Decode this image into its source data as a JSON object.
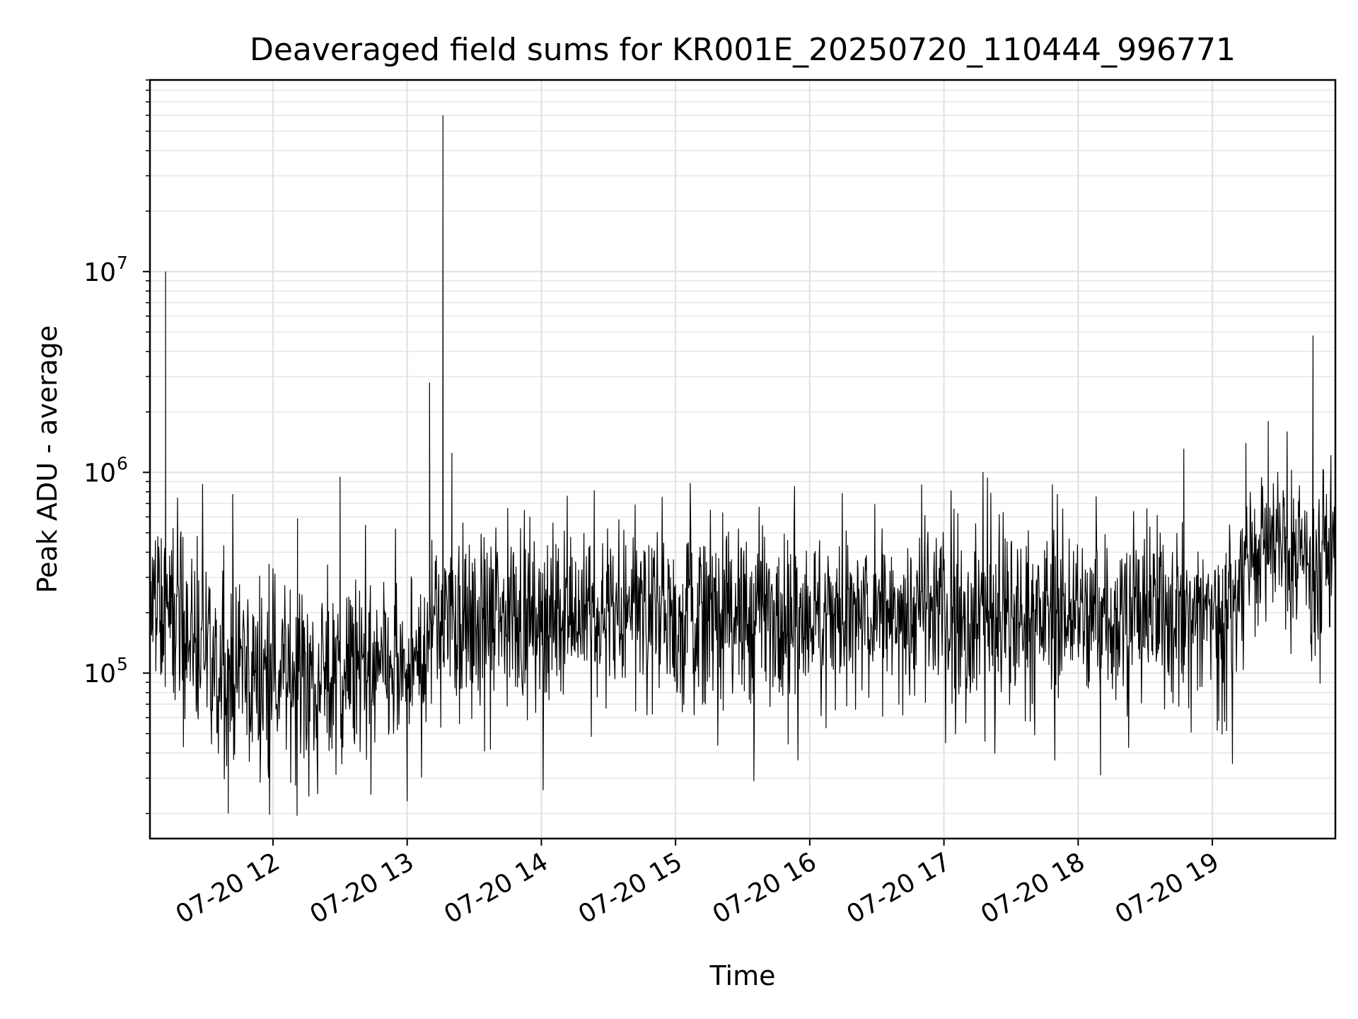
{
  "chart_data": {
    "type": "line",
    "title": "Deaveraged field sums for KR001E_20250720_110444_996771",
    "xlabel": "Time",
    "ylabel": "Peak ADU - average",
    "x_axis": {
      "kind": "datetime",
      "range": [
        "2025-07-20 11:05",
        "2025-07-20 19:55"
      ],
      "ticks": [
        {
          "time": "2025-07-20 12:00",
          "label": "07-20 12"
        },
        {
          "time": "2025-07-20 13:00",
          "label": "07-20 13"
        },
        {
          "time": "2025-07-20 14:00",
          "label": "07-20 14"
        },
        {
          "time": "2025-07-20 15:00",
          "label": "07-20 15"
        },
        {
          "time": "2025-07-20 16:00",
          "label": "07-20 16"
        },
        {
          "time": "2025-07-20 17:00",
          "label": "07-20 17"
        },
        {
          "time": "2025-07-20 18:00",
          "label": "07-20 18"
        },
        {
          "time": "2025-07-20 19:00",
          "label": "07-20 19"
        }
      ]
    },
    "y_axis": {
      "scale": "log",
      "range": [
        15000,
        90000000
      ],
      "ticks": [
        {
          "value": 100000,
          "base": "10",
          "exp": "5"
        },
        {
          "value": 1000000,
          "base": "10",
          "exp": "6"
        },
        {
          "value": 10000000,
          "base": "10",
          "exp": "7"
        }
      ]
    },
    "grid": true,
    "series": [
      {
        "color": "#000000",
        "description_of_trend": "noisy series; level ~2e5 (11:05-11:20), ~1e5 (11:30-13:05), ~2e5 (13:10-19:10), ~4e5 (19:15-19:55)",
        "points": [
          {
            "x": "2025-07-20 11:05",
            "y": 200000
          },
          {
            "x": "2025-07-20 11:12",
            "y": 1150000
          },
          {
            "x": "2025-07-20 11:12",
            "y": 10000000
          },
          {
            "x": "2025-07-20 11:15",
            "y": 300000
          },
          {
            "x": "2025-07-20 11:40",
            "y": 20000
          },
          {
            "x": "2025-07-20 11:42",
            "y": 780000
          },
          {
            "x": "2025-07-20 12:11",
            "y": 590000
          },
          {
            "x": "2025-07-20 12:20",
            "y": 25000
          },
          {
            "x": "2025-07-20 12:30",
            "y": 950000
          },
          {
            "x": "2025-07-20 13:00",
            "y": 23000
          },
          {
            "x": "2025-07-20 13:10",
            "y": 2800000
          },
          {
            "x": "2025-07-20 13:16",
            "y": 60000000
          },
          {
            "x": "2025-07-20 13:20",
            "y": 1250000
          },
          {
            "x": "2025-07-20 15:35",
            "y": 29000
          },
          {
            "x": "2025-07-20 16:50",
            "y": 870000
          },
          {
            "x": "2025-07-20 18:10",
            "y": 31000
          },
          {
            "x": "2025-07-20 19:15",
            "y": 1400000
          },
          {
            "x": "2025-07-20 19:25",
            "y": 1800000
          },
          {
            "x": "2025-07-20 19:45",
            "y": 4800000
          },
          {
            "x": "2025-07-20 19:55",
            "y": 600000
          }
        ]
      }
    ]
  }
}
